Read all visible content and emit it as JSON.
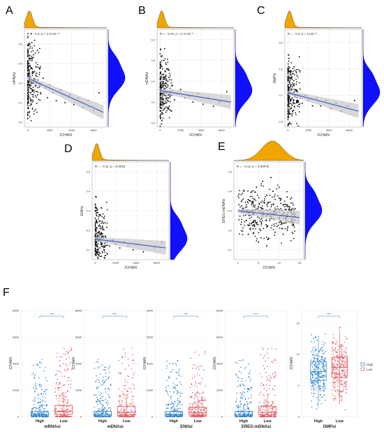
{
  "colors": {
    "scatter_point": "#111111",
    "regression_line": "#3a5fcd",
    "confidence_band": "#c8c8c8",
    "marginal_top": "#f0a500",
    "marginal_right": "#1010ff",
    "box_high": "#2a7fc9",
    "box_low": "#e0505a"
  },
  "chart_data": [
    {
      "panel": "A",
      "type": "scatter",
      "xlabel": "JCHAIN",
      "ylabel": "mRNAsi",
      "annotation": "R = - 0.3, p < 2.2×10⁻¹⁶",
      "xticks": [
        "0",
        "2000",
        "4000",
        "6000"
      ],
      "yticks": [
        "0.0",
        "0.2",
        "0.4",
        "0.6",
        "0.8"
      ],
      "xlim": [
        -300,
        7200
      ],
      "ylim": [
        -0.05,
        0.95
      ],
      "line": {
        "x0": 0,
        "y0": 0.45,
        "x1": 6900,
        "y1": 0.1
      },
      "points": [
        [
          20,
          0.35
        ],
        [
          40,
          0.5
        ],
        [
          60,
          0.42
        ],
        [
          90,
          0.28
        ],
        [
          120,
          0.6
        ],
        [
          150,
          0.38
        ],
        [
          200,
          0.47
        ],
        [
          250,
          0.3
        ],
        [
          300,
          0.55
        ],
        [
          350,
          0.41
        ],
        [
          400,
          0.33
        ],
        [
          450,
          0.52
        ],
        [
          500,
          0.26
        ],
        [
          600,
          0.44
        ],
        [
          700,
          0.37
        ],
        [
          800,
          0.5
        ],
        [
          900,
          0.31
        ],
        [
          1000,
          0.4
        ],
        [
          1200,
          0.29
        ],
        [
          1400,
          0.45
        ],
        [
          1600,
          0.35
        ],
        [
          1800,
          0.25
        ],
        [
          2000,
          0.38
        ],
        [
          2300,
          0.3
        ],
        [
          2600,
          0.22
        ],
        [
          3000,
          0.33
        ],
        [
          3400,
          0.2
        ],
        [
          3800,
          0.28
        ],
        [
          4200,
          0.18
        ],
        [
          4600,
          0.25
        ],
        [
          5000,
          0.15
        ],
        [
          5500,
          0.22
        ],
        [
          6000,
          0.12
        ],
        [
          6500,
          0.3
        ],
        [
          30,
          0.72
        ],
        [
          70,
          0.8
        ],
        [
          110,
          0.65
        ],
        [
          50,
          0.15
        ],
        [
          80,
          0.2
        ],
        [
          140,
          0.1
        ],
        [
          180,
          0.68
        ],
        [
          220,
          0.58
        ],
        [
          260,
          0.22
        ],
        [
          320,
          0.18
        ],
        [
          380,
          0.63
        ]
      ]
    },
    {
      "panel": "B",
      "type": "scatter",
      "xlabel": "JCHAIN",
      "ylabel": "mDNAsi",
      "annotation": "R = - 0.15, p = 2.1×10⁻⁵",
      "xticks": [
        "0",
        "2000",
        "4000",
        "6000"
      ],
      "yticks": [
        "0.0",
        "0.1",
        "0.2",
        "0.3",
        "0.4"
      ],
      "xlim": [
        -300,
        7200
      ],
      "ylim": [
        -0.02,
        0.45
      ],
      "line": {
        "x0": 0,
        "y0": 0.155,
        "x1": 6900,
        "y1": 0.1
      },
      "points": [
        [
          20,
          0.12
        ],
        [
          50,
          0.18
        ],
        [
          80,
          0.15
        ],
        [
          110,
          0.1
        ],
        [
          150,
          0.22
        ],
        [
          200,
          0.14
        ],
        [
          260,
          0.19
        ],
        [
          320,
          0.11
        ],
        [
          400,
          0.16
        ],
        [
          480,
          0.25
        ],
        [
          560,
          0.13
        ],
        [
          650,
          0.17
        ],
        [
          750,
          0.2
        ],
        [
          850,
          0.12
        ],
        [
          1000,
          0.15
        ],
        [
          1200,
          0.18
        ],
        [
          1400,
          0.11
        ],
        [
          1700,
          0.14
        ],
        [
          2000,
          0.16
        ],
        [
          2400,
          0.12
        ],
        [
          2800,
          0.13
        ],
        [
          3200,
          0.1
        ],
        [
          3700,
          0.14
        ],
        [
          4200,
          0.09
        ],
        [
          4700,
          0.12
        ],
        [
          5200,
          0.08
        ],
        [
          5800,
          0.1
        ],
        [
          6500,
          0.15
        ],
        [
          40,
          0.28
        ],
        [
          90,
          0.32
        ],
        [
          130,
          0.07
        ],
        [
          170,
          0.05
        ],
        [
          230,
          0.26
        ],
        [
          290,
          0.06
        ],
        [
          350,
          0.3
        ],
        [
          60,
          0.24
        ]
      ]
    },
    {
      "panel": "C",
      "type": "scatter",
      "xlabel": "JCHAIN",
      "ylabel": "DMPsi",
      "annotation": "R = - 0.2, p = 1×10⁻⁸",
      "xticks": [
        "0",
        "2000",
        "4000",
        "6000"
      ],
      "yticks": [
        "0.0",
        "0.1",
        "0.2",
        "0.3"
      ],
      "xlim": [
        -300,
        7200
      ],
      "ylim": [
        -0.02,
        0.35
      ],
      "line": {
        "x0": 0,
        "y0": 0.11,
        "x1": 6900,
        "y1": 0.04
      },
      "points": [
        [
          20,
          0.09
        ],
        [
          50,
          0.13
        ],
        [
          80,
          0.1
        ],
        [
          110,
          0.07
        ],
        [
          150,
          0.15
        ],
        [
          200,
          0.11
        ],
        [
          260,
          0.08
        ],
        [
          320,
          0.12
        ],
        [
          400,
          0.09
        ],
        [
          480,
          0.14
        ],
        [
          560,
          0.07
        ],
        [
          650,
          0.1
        ],
        [
          750,
          0.12
        ],
        [
          850,
          0.08
        ],
        [
          1000,
          0.1
        ],
        [
          1200,
          0.09
        ],
        [
          1400,
          0.07
        ],
        [
          1700,
          0.1
        ],
        [
          2000,
          0.08
        ],
        [
          2400,
          0.06
        ],
        [
          2800,
          0.09
        ],
        [
          3200,
          0.06
        ],
        [
          3700,
          0.08
        ],
        [
          4200,
          0.05
        ],
        [
          4700,
          0.07
        ],
        [
          5200,
          0.04
        ],
        [
          5800,
          0.06
        ],
        [
          6500,
          0.08
        ],
        [
          40,
          0.2
        ],
        [
          90,
          0.24
        ],
        [
          130,
          0.04
        ],
        [
          170,
          0.03
        ],
        [
          230,
          0.18
        ],
        [
          290,
          0.05
        ],
        [
          350,
          0.17
        ]
      ]
    },
    {
      "panel": "D",
      "type": "scatter",
      "xlabel": "JCHAIN",
      "ylabel": "ENHsi",
      "annotation": "R = - 0.11, p = 0.0018",
      "xticks": [
        "0",
        "2000",
        "4000",
        "6000"
      ],
      "yticks": [
        "0.1",
        "0.2",
        "0.3",
        "0.4",
        "0.5"
      ],
      "xlim": [
        -300,
        7200
      ],
      "ylim": [
        0.05,
        0.55
      ],
      "line": {
        "x0": 0,
        "y0": 0.155,
        "x1": 6900,
        "y1": 0.11
      },
      "points": [
        [
          20,
          0.14
        ],
        [
          50,
          0.2
        ],
        [
          80,
          0.17
        ],
        [
          110,
          0.12
        ],
        [
          150,
          0.24
        ],
        [
          200,
          0.16
        ],
        [
          260,
          0.13
        ],
        [
          320,
          0.19
        ],
        [
          400,
          0.15
        ],
        [
          480,
          0.22
        ],
        [
          560,
          0.13
        ],
        [
          650,
          0.18
        ],
        [
          750,
          0.16
        ],
        [
          850,
          0.12
        ],
        [
          1000,
          0.17
        ],
        [
          1200,
          0.14
        ],
        [
          1400,
          0.12
        ],
        [
          1700,
          0.15
        ],
        [
          2000,
          0.13
        ],
        [
          2400,
          0.11
        ],
        [
          2800,
          0.14
        ],
        [
          3200,
          0.12
        ],
        [
          3700,
          0.1
        ],
        [
          4200,
          0.13
        ],
        [
          4700,
          0.09
        ],
        [
          5200,
          0.12
        ],
        [
          5800,
          0.11
        ],
        [
          6500,
          0.14
        ],
        [
          40,
          0.32
        ],
        [
          90,
          0.37
        ],
        [
          130,
          0.09
        ],
        [
          170,
          0.08
        ],
        [
          230,
          0.29
        ],
        [
          290,
          0.1
        ],
        [
          350,
          0.27
        ]
      ]
    },
    {
      "panel": "E",
      "type": "scatter",
      "xlabel": "JCHAIN",
      "ylabel": "EREG-mDNAsi",
      "annotation": "R = - 0.12, p = 0.00076",
      "xticks": [
        "0",
        "5",
        "10",
        "15"
      ],
      "yticks": [
        "0.1",
        "0.2",
        "0.3",
        "0.4",
        "0.5"
      ],
      "xlim": [
        -1,
        16
      ],
      "ylim": [
        0.05,
        0.55
      ],
      "line": {
        "x0": 0,
        "y0": 0.3,
        "x1": 15,
        "y1": 0.265
      },
      "points": [
        [
          1,
          0.3
        ],
        [
          2,
          0.25
        ],
        [
          3,
          0.35
        ],
        [
          4,
          0.22
        ],
        [
          5,
          0.32
        ],
        [
          6,
          0.28
        ],
        [
          7,
          0.38
        ],
        [
          8,
          0.26
        ],
        [
          9,
          0.3
        ],
        [
          10,
          0.24
        ],
        [
          11,
          0.33
        ],
        [
          12,
          0.2
        ],
        [
          13,
          0.29
        ],
        [
          14,
          0.27
        ],
        [
          1.5,
          0.4
        ],
        [
          2.5,
          0.18
        ],
        [
          3.5,
          0.28
        ],
        [
          4.5,
          0.42
        ],
        [
          5.5,
          0.2
        ],
        [
          6.5,
          0.34
        ],
        [
          7.5,
          0.16
        ],
        [
          8.5,
          0.4
        ],
        [
          9.5,
          0.22
        ],
        [
          10.5,
          0.36
        ],
        [
          11.5,
          0.26
        ],
        [
          12.5,
          0.31
        ],
        [
          13.5,
          0.23
        ],
        [
          6,
          0.45
        ],
        [
          7,
          0.12
        ],
        [
          8,
          0.47
        ],
        [
          5,
          0.14
        ],
        [
          9,
          0.19
        ],
        [
          4,
          0.36
        ],
        [
          10,
          0.42
        ],
        [
          3,
          0.21
        ],
        [
          11,
          0.18
        ],
        [
          2,
          0.33
        ],
        [
          12,
          0.37
        ],
        [
          7.2,
          0.3
        ],
        [
          6.8,
          0.25
        ],
        [
          8.2,
          0.33
        ],
        [
          5.8,
          0.31
        ]
      ]
    },
    {
      "panel": "F",
      "type": "box",
      "ylabel": "JCHAIN",
      "legend": [
        "High",
        "Low"
      ],
      "groups": [
        {
          "name": "mRNAsi",
          "categories": [
            "High",
            "Low"
          ],
          "sig": "****",
          "ylim": [
            0,
            8000
          ],
          "yticks": [
            "0",
            "2000",
            "4000",
            "6000",
            "8000"
          ],
          "boxes": [
            {
              "q1": 60,
              "median": 180,
              "q3": 380,
              "wlo": 0,
              "whi": 900
            },
            {
              "q1": 180,
              "median": 380,
              "q3": 850,
              "wlo": 0,
              "whi": 1800
            }
          ]
        },
        {
          "name": "mDNAsi",
          "categories": [
            "High",
            "Low"
          ],
          "sig": "****",
          "ylim": [
            0,
            8000
          ],
          "yticks": [
            "0",
            "2000",
            "4000",
            "6000",
            "8000"
          ],
          "boxes": [
            {
              "q1": 60,
              "median": 170,
              "q3": 400,
              "wlo": 0,
              "whi": 950
            },
            {
              "q1": 130,
              "median": 330,
              "q3": 780,
              "wlo": 0,
              "whi": 1700
            }
          ]
        },
        {
          "name": "ENHsi",
          "categories": [
            "High",
            "Low"
          ],
          "sig": "****",
          "ylim": [
            0,
            8000
          ],
          "yticks": [
            "0",
            "2000",
            "4000",
            "6000",
            "8000"
          ],
          "boxes": [
            {
              "q1": 60,
              "median": 180,
              "q3": 390,
              "wlo": 0,
              "whi": 950
            },
            {
              "q1": 120,
              "median": 300,
              "q3": 700,
              "wlo": 0,
              "whi": 1550
            }
          ]
        },
        {
          "name": "EREG-mDNAsi",
          "categories": [
            "High",
            "Low"
          ],
          "sig": "****",
          "ylim": [
            0,
            8000
          ],
          "yticks": [
            "0",
            "2000",
            "4000",
            "6000",
            "8000"
          ],
          "boxes": [
            {
              "q1": 60,
              "median": 170,
              "q3": 400,
              "wlo": 0,
              "whi": 950
            },
            {
              "q1": 130,
              "median": 330,
              "q3": 780,
              "wlo": 0,
              "whi": 1700
            }
          ]
        },
        {
          "name": "DMPsi",
          "categories": [
            "High",
            "Low"
          ],
          "sig": "****",
          "ylim": [
            0,
            17
          ],
          "yticks": [
            "0",
            "5",
            "10",
            "15"
          ],
          "boxes": [
            {
              "q1": 5.8,
              "median": 7.2,
              "q3": 8.8,
              "wlo": 1.5,
              "whi": 13
            },
            {
              "q1": 6.3,
              "median": 7.9,
              "q3": 9.5,
              "wlo": 2,
              "whi": 14
            }
          ]
        }
      ]
    }
  ]
}
